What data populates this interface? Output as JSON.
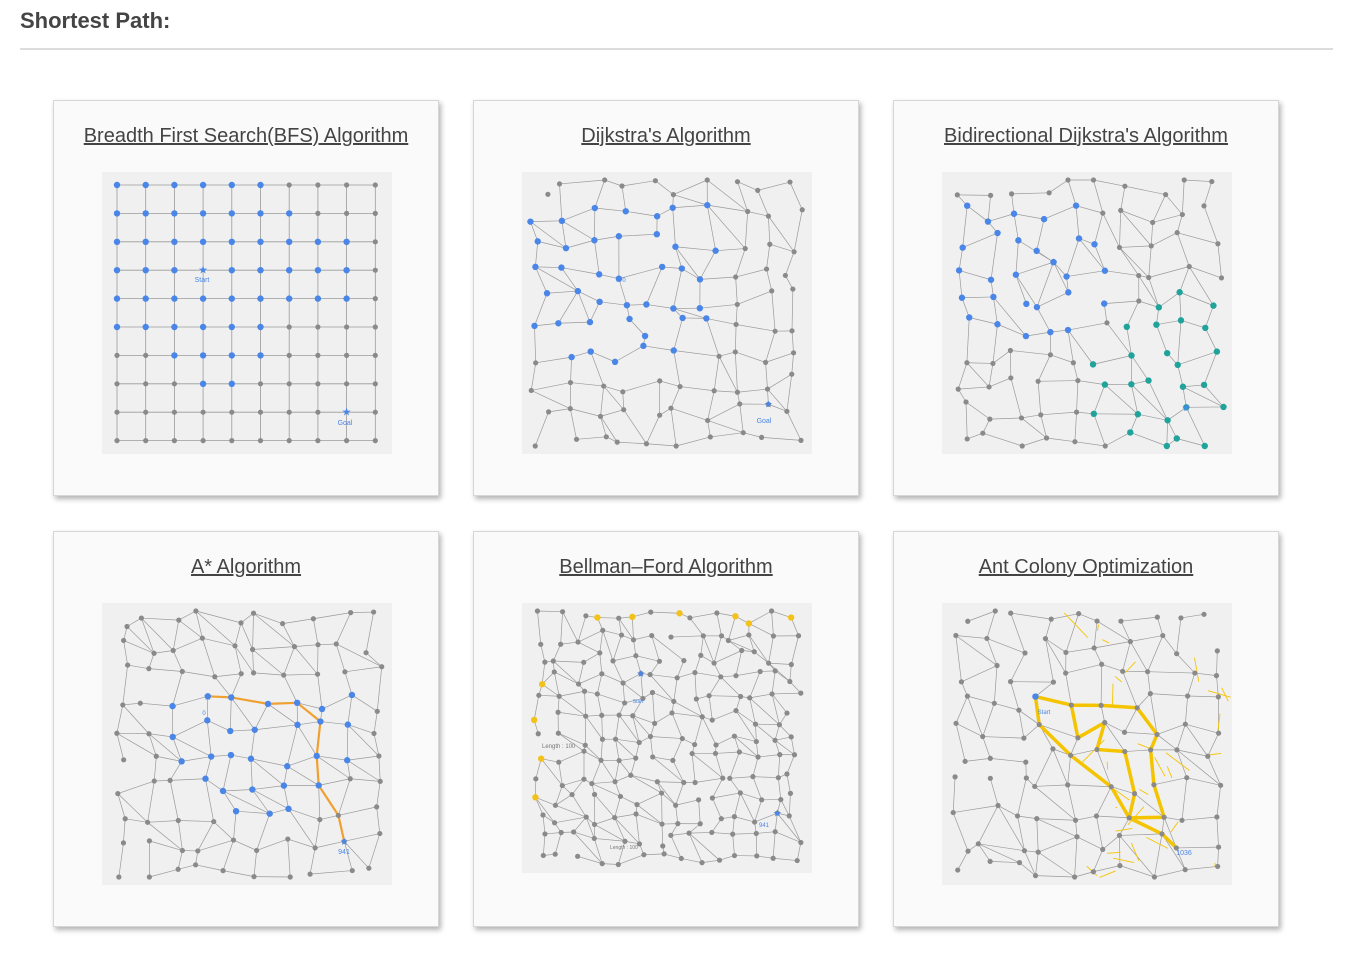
{
  "section": {
    "title": "Shortest Path:"
  },
  "cards": [
    {
      "title": "Breadth First Search(BFS) Algorithm",
      "start_label": "Start",
      "goal_label": "Goal"
    },
    {
      "title": "Dijkstra's Algorithm",
      "start_label": "0",
      "goal_label": "Goal"
    },
    {
      "title": "Bidirectional Dijkstra's Algorithm"
    },
    {
      "title": "A* Algorithm",
      "start_label": "0",
      "goal_label": "941"
    },
    {
      "title": "Bellman–Ford Algorithm",
      "start_label": "Start",
      "goal_label": "941",
      "length_label_a": "Length : 100",
      "length_label_b": "Length : 100"
    },
    {
      "title": "Ant Colony Optimization",
      "start_label": "Start",
      "goal_label": "1036"
    }
  ],
  "colors": {
    "node_gray": "#8a8a8a",
    "edge_gray": "#9a9a9a",
    "visited_blue": "#4a86e8",
    "visited_teal": "#1fa39a",
    "path_orange": "#f0a030",
    "visited_yellow": "#f2c21a",
    "ant_path": "#f5c400"
  }
}
